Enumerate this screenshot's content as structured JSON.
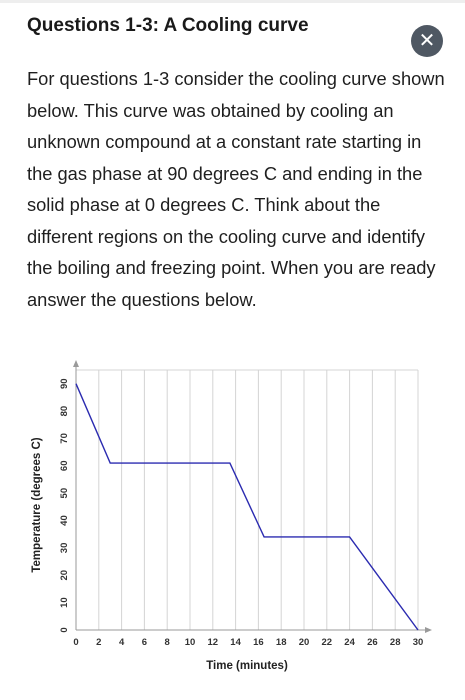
{
  "header": {
    "title": "Questions 1-3: A Cooling curve",
    "close_icon": "close-icon"
  },
  "body": {
    "paragraph": "For questions 1-3 consider the cooling curve shown below. This curve was obtained by cooling an unknown compound at a constant rate starting in the gas phase at 90 degrees C and ending in the solid phase at 0 degrees C. Think about the different regions on the cooling curve and identify the boiling and freezing point. When you are ready answer the questions below."
  },
  "chart_data": {
    "type": "line",
    "xlabel": "Time (minutes)",
    "ylabel": "Temperature (degrees C)",
    "xlim": [
      0,
      30
    ],
    "ylim": [
      0,
      95
    ],
    "xticks": [
      0,
      2,
      4,
      6,
      8,
      10,
      12,
      14,
      16,
      18,
      20,
      22,
      24,
      26,
      28,
      30
    ],
    "yticks": [
      0,
      10,
      20,
      30,
      40,
      50,
      60,
      70,
      80,
      90
    ],
    "grid": "vertical",
    "line_color": "#2b2bb0",
    "series": [
      {
        "x": [
          0,
          3,
          13.5,
          16.5,
          24,
          30
        ],
        "y": [
          90,
          61,
          61,
          34,
          34,
          0
        ]
      }
    ]
  }
}
